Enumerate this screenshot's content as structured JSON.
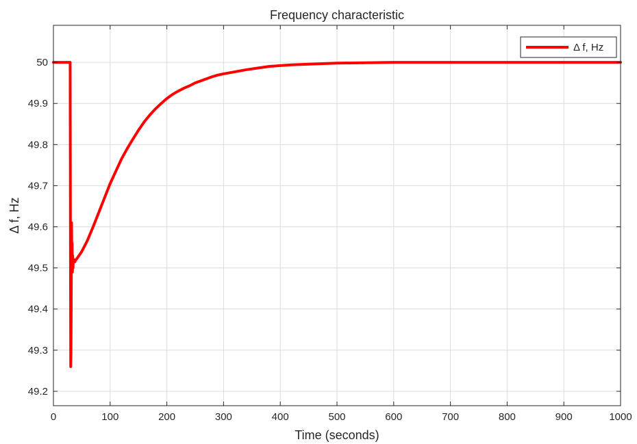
{
  "chart_data": {
    "type": "line",
    "title": "Frequency characteristic",
    "xlabel": "Time (seconds)",
    "ylabel": "Δ f, Hz",
    "xlim": [
      0,
      1000
    ],
    "ylim": [
      49.165,
      50.09
    ],
    "xticks": [
      0,
      100,
      200,
      300,
      400,
      500,
      600,
      700,
      800,
      900,
      1000
    ],
    "xtick_labels": [
      "0",
      "100",
      "200",
      "300",
      "400",
      "500",
      "600",
      "700",
      "800",
      "900",
      "1000"
    ],
    "yticks": [
      49.2,
      49.3,
      49.4,
      49.5,
      49.6,
      49.7,
      49.8,
      49.9,
      50
    ],
    "ytick_labels": [
      "49.2",
      "49.3",
      "49.4",
      "49.5",
      "49.6",
      "49.7",
      "49.8",
      "49.9",
      "50"
    ],
    "grid": true,
    "legend_position": "top-right",
    "series": [
      {
        "name": "Δ f, Hz",
        "color": "#ff0000",
        "x": [
          0,
          29.5,
          30,
          30.5,
          31,
          31.5,
          32,
          32.5,
          33,
          33.5,
          34,
          34.5,
          35,
          36,
          37,
          38,
          39,
          40,
          45,
          50,
          60,
          70,
          80,
          90,
          100,
          110,
          120,
          130,
          140,
          150,
          160,
          170,
          180,
          190,
          200,
          210,
          220,
          230,
          240,
          250,
          260,
          270,
          280,
          290,
          300,
          320,
          340,
          360,
          380,
          400,
          420,
          440,
          460,
          480,
          500,
          550,
          600,
          650,
          700,
          750,
          800,
          850,
          900,
          950,
          1000
        ],
        "y": [
          50.0,
          50.0,
          49.6,
          49.26,
          49.3,
          49.45,
          49.61,
          49.5,
          49.56,
          49.49,
          49.53,
          49.5,
          49.52,
          49.52,
          49.515,
          49.515,
          49.52,
          49.52,
          49.53,
          49.54,
          49.567,
          49.6,
          49.635,
          49.67,
          49.705,
          49.735,
          49.765,
          49.79,
          49.813,
          49.835,
          49.855,
          49.872,
          49.887,
          49.9,
          49.912,
          49.922,
          49.93,
          49.937,
          49.943,
          49.95,
          49.955,
          49.96,
          49.965,
          49.969,
          49.972,
          49.977,
          49.982,
          49.986,
          49.99,
          49.992,
          49.994,
          49.995,
          49.996,
          49.997,
          49.998,
          49.999,
          50.0,
          50.0,
          50.0,
          50.0,
          50.0,
          50.0,
          50.0,
          50.0,
          50.0
        ]
      }
    ]
  }
}
